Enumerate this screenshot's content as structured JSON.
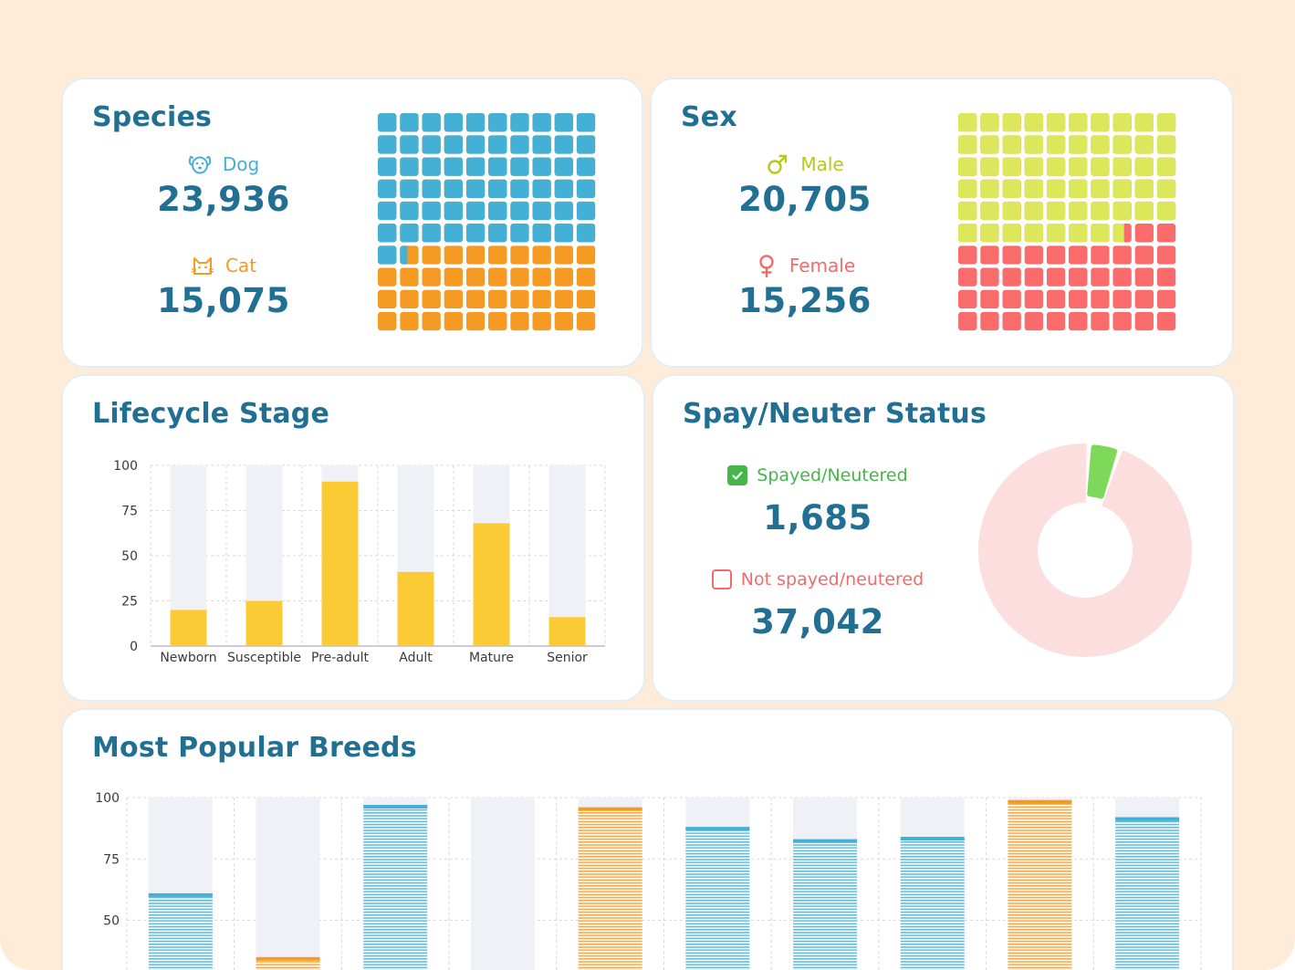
{
  "species": {
    "title": "Species",
    "dog": {
      "label": "Dog",
      "value": "23,936",
      "icon": "dog-icon",
      "color": "#45b0d6"
    },
    "cat": {
      "label": "Cat",
      "value": "15,075",
      "icon": "cat-icon",
      "color": "#f59a23"
    },
    "waffle": {
      "total": 100,
      "first_share": 61.4,
      "first_color": "#45b0d6",
      "second_color": "#f59a23"
    }
  },
  "sex": {
    "title": "Sex",
    "male": {
      "label": "Male",
      "value": "20,705",
      "icon": "male-icon",
      "color": "#b6c81c"
    },
    "female": {
      "label": "Female",
      "value": "15,256",
      "icon": "female-icon",
      "color": "#f36b6b"
    },
    "waffle": {
      "total": 100,
      "first_share": 57.6,
      "first_color": "#dce75c",
      "second_color": "#fa6b6b"
    }
  },
  "lifecycle": {
    "title": "Lifecycle Stage",
    "chart_data": {
      "type": "bar",
      "categories": [
        "Newborn",
        "Susceptible",
        "Pre-adult",
        "Adult",
        "Mature",
        "Senior"
      ],
      "values": [
        20,
        25,
        91,
        41,
        68,
        16
      ],
      "ylim": [
        0,
        100
      ],
      "yticks": [
        0,
        25,
        50,
        75,
        100
      ],
      "bar_color": "#fbcb36",
      "track_color": "#f0f0f7",
      "grid": true
    }
  },
  "spay": {
    "title": "Spay/Neuter Status",
    "spayed": {
      "label": "Spayed/Neutered",
      "value": "1,685",
      "color": "#45b649"
    },
    "not_spayed": {
      "label": "Not spayed/neutered",
      "value": "37,042",
      "color": "#f26b6b"
    },
    "chart_data": {
      "type": "pie",
      "labels": [
        "Spayed/Neutered",
        "Not spayed/neutered"
      ],
      "values": [
        1685,
        37042
      ],
      "colors": [
        "#7ed85a",
        "#fcdede"
      ],
      "donut": true
    }
  },
  "breeds": {
    "title": "Most Popular Breeds",
    "chart_data": {
      "type": "bar",
      "categories": [
        "",
        "",
        "",
        "",
        "",
        "",
        "",
        "",
        "",
        ""
      ],
      "values": [
        61,
        35,
        97,
        0,
        96,
        88,
        83,
        84,
        99,
        92
      ],
      "species": [
        "dog",
        "cat",
        "dog",
        "dog",
        "cat",
        "dog",
        "dog",
        "dog",
        "cat",
        "dog"
      ],
      "ylim": [
        0,
        100
      ],
      "yticks": [
        50,
        75,
        100
      ],
      "colors": {
        "dog": "#45b0d6",
        "cat": "#f59a23"
      },
      "track_color": "#f0f0f7",
      "grid": true
    }
  }
}
